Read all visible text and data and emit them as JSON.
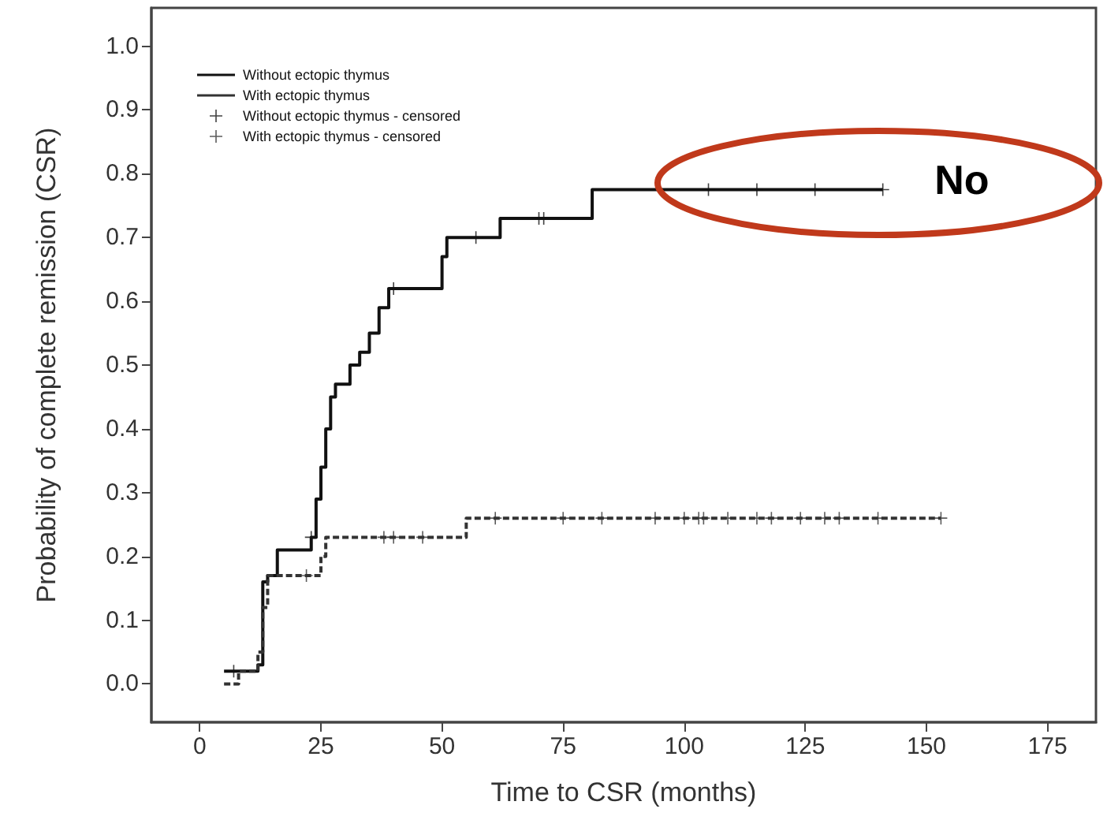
{
  "chart_data": {
    "type": "step",
    "xlabel": "Time to CSR (months)",
    "ylabel": "Probability of complete remission (CSR)",
    "xlim": [
      -10,
      185
    ],
    "xticks": [
      0,
      25,
      50,
      75,
      100,
      125,
      150,
      175
    ],
    "ylim": [
      -0.06,
      1.06
    ],
    "yticks": [
      {
        "value": 0,
        "label": "0.0"
      },
      {
        "value": 0.1,
        "label": "0.1"
      },
      {
        "value": 0.2,
        "label": "0.2"
      },
      {
        "value": 0.3,
        "label": "0.3"
      },
      {
        "value": 0.4,
        "label": "0.4"
      },
      {
        "value": 0.5,
        "label": "0.5"
      },
      {
        "value": 0.6,
        "label": "0.6"
      },
      {
        "value": 0.7,
        "label": "0.7"
      },
      {
        "value": 0.8,
        "label": "0.8"
      },
      {
        "value": 0.9,
        "label": "0.9"
      },
      {
        "value": 1,
        "label": "1.0"
      }
    ],
    "grid": false,
    "legend": "top left",
    "marker": "none",
    "series": [
      {
        "name": "Without ectopic thymus",
        "color": "#111111",
        "line_style": "solid",
        "x": [
          5,
          12,
          13,
          14,
          16,
          23,
          24,
          25,
          26,
          27,
          28,
          31,
          33,
          35,
          37,
          39,
          50,
          51,
          62,
          81,
          141
        ],
        "values": [
          0.02,
          0.03,
          0.16,
          0.17,
          0.21,
          0.23,
          0.29,
          0.34,
          0.4,
          0.45,
          0.47,
          0.5,
          0.52,
          0.55,
          0.59,
          0.62,
          0.67,
          0.7,
          0.73,
          0.775,
          0.775
        ]
      },
      {
        "name": "With ectopic thymus",
        "color": "#333333",
        "line_style": "dashed",
        "x": [
          5,
          8,
          12,
          13,
          14,
          25,
          26,
          55,
          153
        ],
        "values": [
          0.0,
          0.02,
          0.05,
          0.12,
          0.17,
          0.2,
          0.23,
          0.26,
          0.26
        ]
      },
      {
        "name": "Without ectopic thymus - censored",
        "type": "scatter",
        "marker": "cross",
        "color": "#111111",
        "x": [
          7,
          23,
          40,
          57,
          70,
          71,
          105,
          115,
          127,
          141
        ],
        "values": [
          0.02,
          0.23,
          0.62,
          0.7,
          0.73,
          0.73,
          0.775,
          0.775,
          0.775,
          0.775
        ]
      },
      {
        "name": "With ectopic thymus - censored",
        "type": "scatter",
        "marker": "cross",
        "color": "#333333",
        "x": [
          22,
          38,
          40,
          46,
          61,
          75,
          83,
          94,
          100,
          103,
          104,
          109,
          115,
          118,
          124,
          129,
          132,
          140,
          153
        ],
        "values": [
          0.17,
          0.23,
          0.23,
          0.23,
          0.26,
          0.26,
          0.26,
          0.26,
          0.26,
          0.26,
          0.26,
          0.26,
          0.26,
          0.26,
          0.26,
          0.26,
          0.26,
          0.26,
          0.26
        ]
      }
    ],
    "annotations": [
      "No"
    ]
  }
}
